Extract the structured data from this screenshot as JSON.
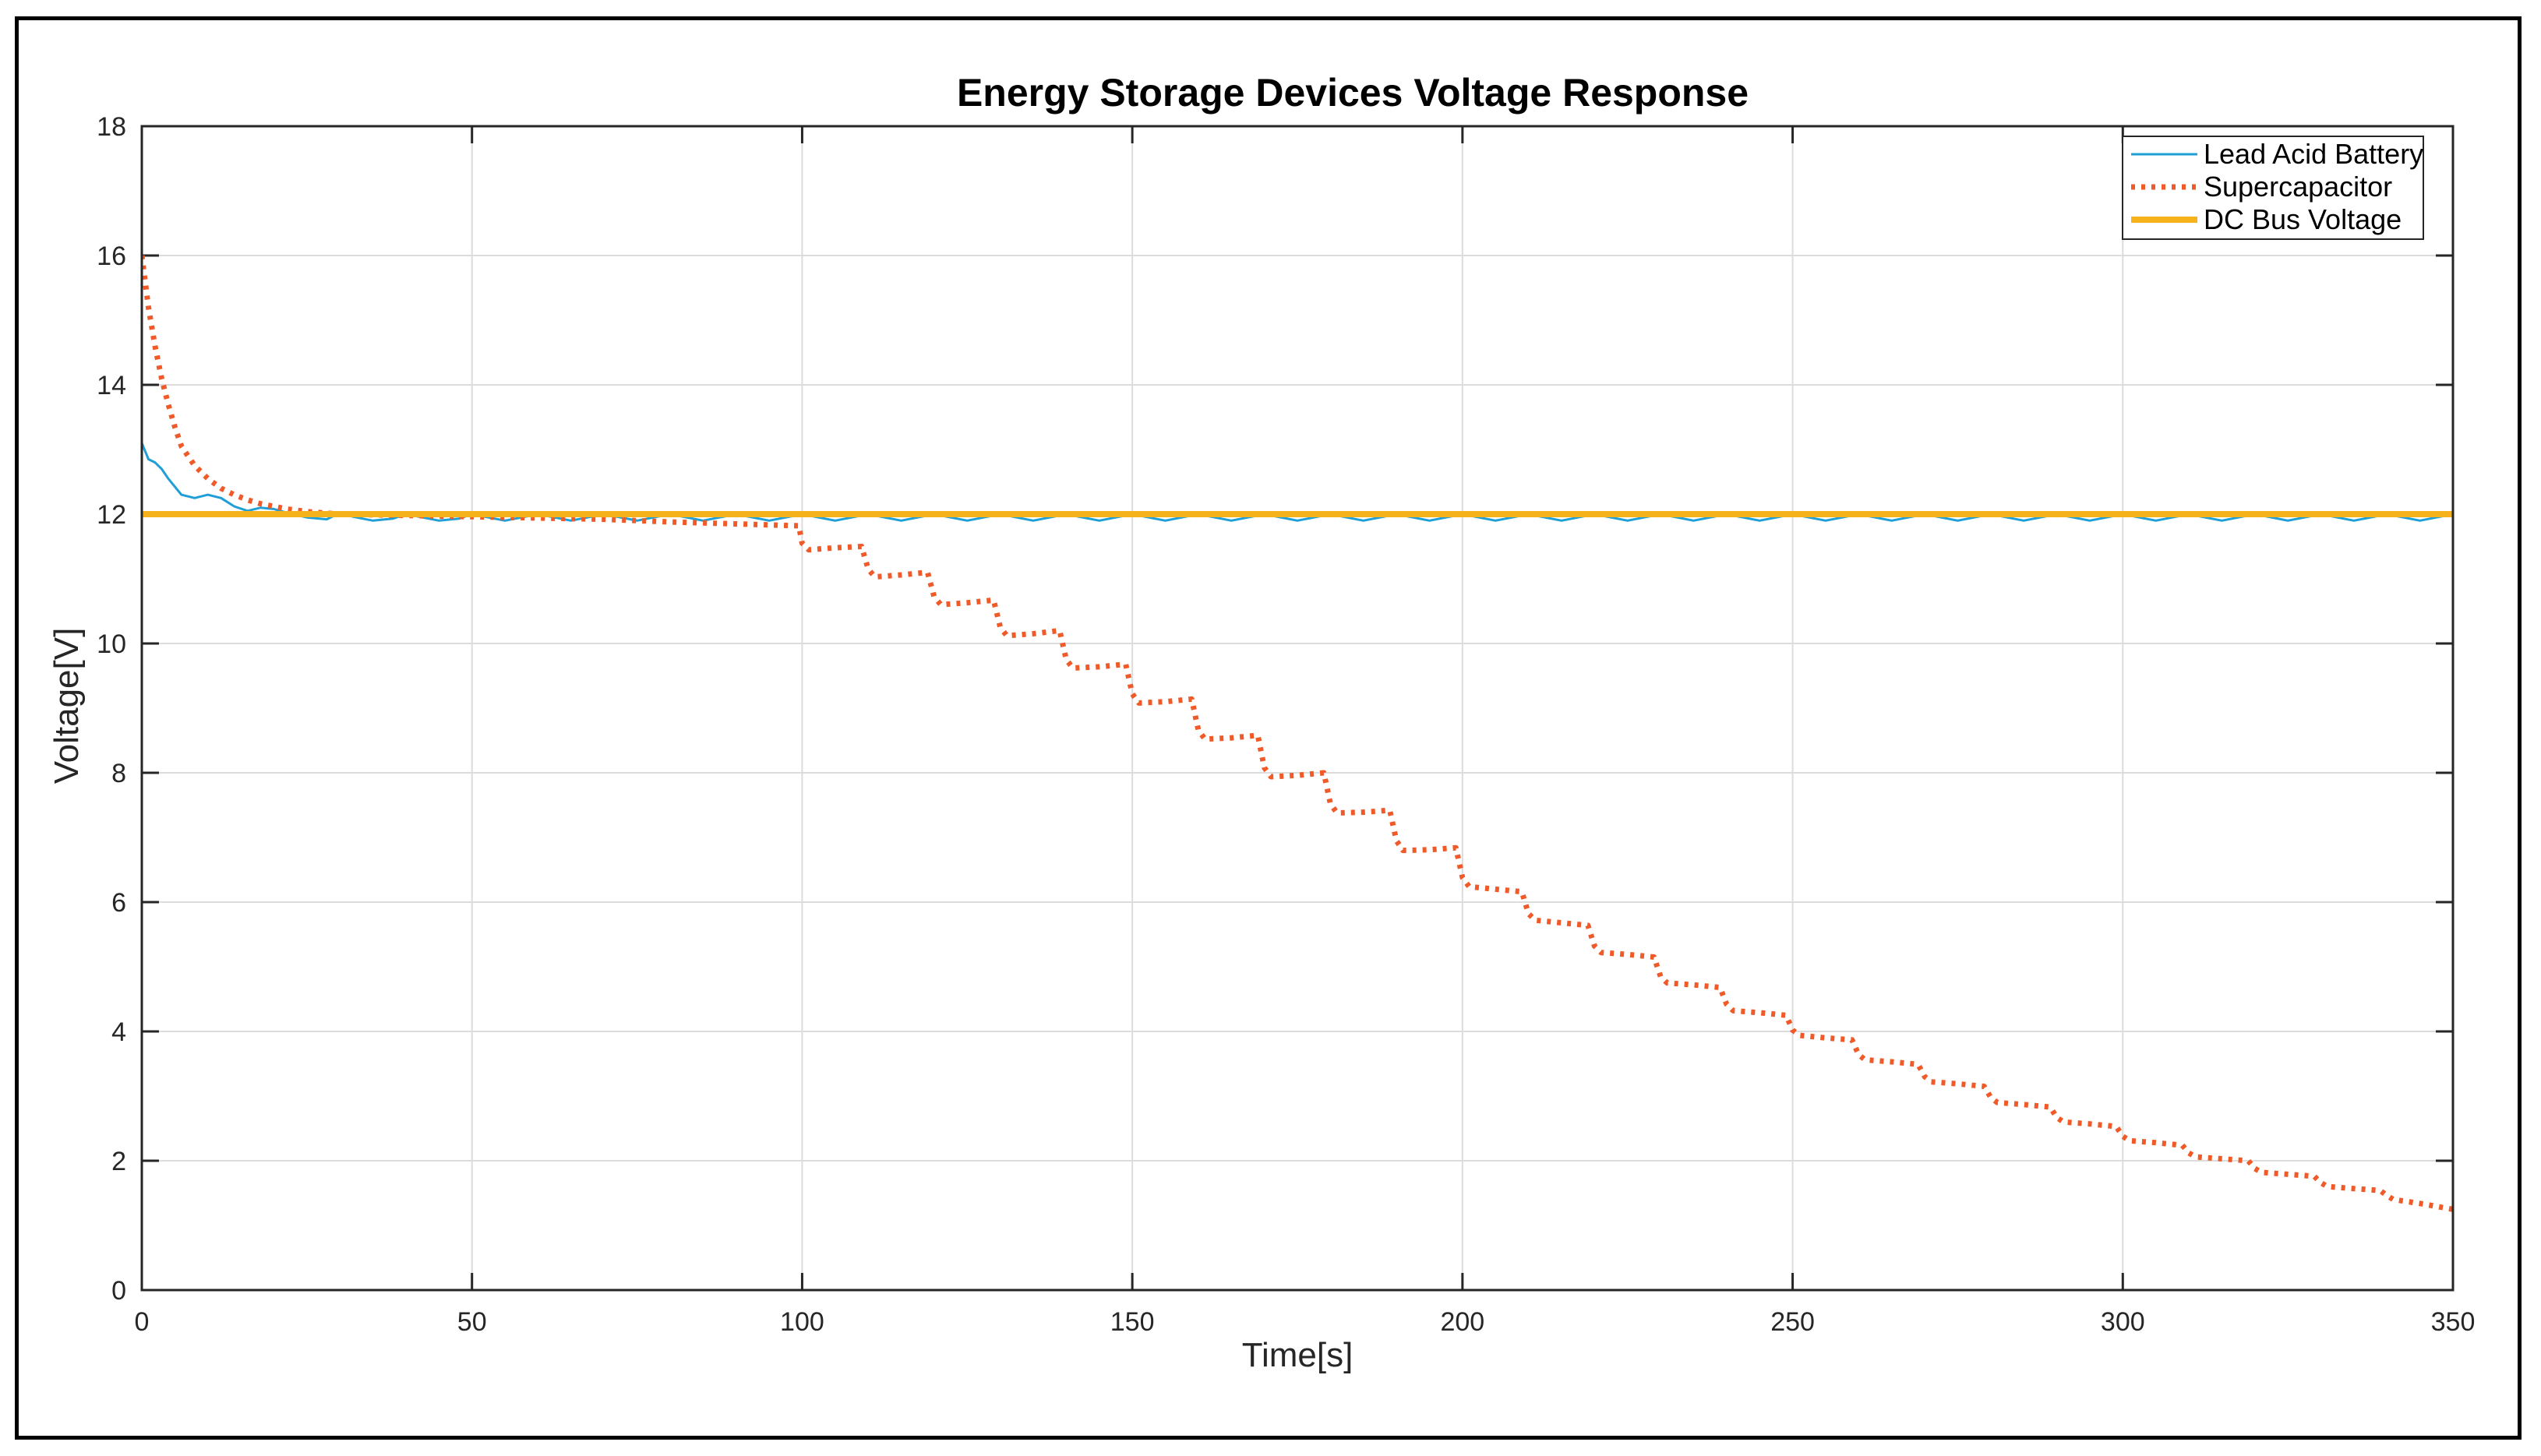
{
  "chart_data": {
    "type": "line",
    "title": "Energy Storage Devices Voltage Response",
    "xlabel": "Time[s]",
    "ylabel": "Voltage[V]",
    "xlim": [
      0,
      350
    ],
    "ylim": [
      0,
      18
    ],
    "xticks": [
      0,
      50,
      100,
      150,
      200,
      250,
      300,
      350
    ],
    "yticks": [
      0,
      2,
      4,
      6,
      8,
      10,
      12,
      14,
      16,
      18
    ],
    "grid": true,
    "legend_position": "top-right",
    "series": [
      {
        "name": "Lead Acid Battery",
        "color": "#1f9fd6",
        "style": "solid",
        "x": [
          0,
          1,
          2,
          3,
          4,
          6,
          8,
          10,
          12,
          14,
          16,
          18,
          20,
          22,
          25,
          28,
          30,
          32,
          35,
          38,
          40,
          42,
          45,
          48,
          50,
          55,
          60,
          65,
          70,
          75,
          80,
          85,
          90,
          95,
          100,
          105,
          110,
          115,
          120,
          125,
          130,
          135,
          140,
          145,
          150,
          155,
          160,
          165,
          170,
          175,
          180,
          185,
          190,
          195,
          200,
          205,
          210,
          215,
          220,
          225,
          230,
          235,
          240,
          245,
          250,
          255,
          260,
          265,
          270,
          275,
          280,
          285,
          290,
          295,
          300,
          305,
          310,
          315,
          320,
          325,
          330,
          335,
          340,
          345,
          350
        ],
        "y": [
          13.1,
          12.85,
          12.8,
          12.7,
          12.55,
          12.3,
          12.25,
          12.3,
          12.25,
          12.12,
          12.05,
          12.1,
          12.08,
          12.02,
          11.95,
          11.92,
          12.02,
          11.96,
          11.9,
          11.93,
          12.0,
          11.96,
          11.9,
          11.93,
          12.0,
          11.9,
          12.0,
          11.9,
          12.0,
          11.9,
          12.0,
          11.9,
          12.0,
          11.9,
          12.0,
          11.9,
          12.0,
          11.9,
          12.0,
          11.9,
          12.0,
          11.9,
          12.0,
          11.9,
          12.0,
          11.9,
          12.0,
          11.9,
          12.0,
          11.9,
          12.0,
          11.9,
          12.0,
          11.9,
          12.0,
          11.9,
          12.0,
          11.9,
          12.0,
          11.9,
          12.0,
          11.9,
          12.0,
          11.9,
          12.0,
          11.9,
          12.0,
          11.9,
          12.0,
          11.9,
          12.0,
          11.9,
          12.0,
          11.9,
          12.0,
          11.9,
          12.0,
          11.9,
          12.0,
          11.9,
          12.0,
          11.9,
          12.0,
          11.9,
          12.0
        ]
      },
      {
        "name": "Supercapacitor",
        "color": "#ef5a28",
        "style": "dotted",
        "x": [
          0,
          1,
          2,
          3,
          4,
          5,
          6,
          8,
          10,
          12,
          14,
          16,
          18,
          20,
          22,
          25,
          30,
          40,
          50,
          60,
          70,
          80,
          90,
          99.5,
          100,
          101,
          105,
          109,
          110,
          111,
          115,
          119,
          120,
          121,
          125,
          129,
          130,
          131,
          135,
          139,
          140,
          141,
          145,
          149,
          150,
          151,
          155,
          159,
          160,
          161,
          165,
          169,
          170,
          171,
          175,
          179,
          180,
          181,
          185,
          189,
          190,
          191,
          195,
          199,
          200,
          201,
          205,
          209,
          210,
          211,
          215,
          219,
          220,
          221,
          225,
          229,
          230,
          231,
          235,
          239,
          240,
          241,
          245,
          249,
          250,
          251,
          255,
          259,
          260,
          261,
          265,
          269,
          270,
          271,
          275,
          279,
          280,
          281,
          285,
          289,
          290,
          291,
          295,
          299,
          300,
          301,
          305,
          309,
          310,
          311,
          315,
          319,
          320,
          321,
          325,
          329,
          330,
          331,
          335,
          339,
          340,
          341,
          345,
          350
        ],
        "y": [
          16.0,
          15.2,
          14.6,
          14.1,
          13.7,
          13.35,
          13.05,
          12.75,
          12.55,
          12.4,
          12.3,
          12.22,
          12.16,
          12.12,
          12.08,
          12.04,
          12.0,
          11.98,
          11.96,
          11.94,
          11.92,
          11.88,
          11.85,
          11.82,
          11.55,
          11.45,
          11.48,
          11.5,
          11.15,
          11.03,
          11.06,
          11.1,
          10.72,
          10.6,
          10.63,
          10.67,
          10.25,
          10.12,
          10.15,
          10.2,
          9.75,
          9.62,
          9.64,
          9.68,
          9.22,
          9.08,
          9.1,
          9.14,
          8.66,
          8.52,
          8.54,
          8.58,
          8.08,
          7.94,
          7.96,
          8.0,
          7.52,
          7.38,
          7.39,
          7.42,
          6.95,
          6.8,
          6.81,
          6.84,
          6.38,
          6.24,
          6.2,
          6.16,
          5.82,
          5.72,
          5.68,
          5.64,
          5.32,
          5.22,
          5.19,
          5.15,
          4.85,
          4.75,
          4.72,
          4.68,
          4.42,
          4.32,
          4.29,
          4.25,
          4.02,
          3.94,
          3.9,
          3.87,
          3.64,
          3.56,
          3.53,
          3.49,
          3.3,
          3.22,
          3.19,
          3.15,
          2.98,
          2.9,
          2.87,
          2.83,
          2.67,
          2.6,
          2.57,
          2.53,
          2.38,
          2.31,
          2.28,
          2.24,
          2.12,
          2.06,
          2.03,
          2.0,
          1.88,
          1.82,
          1.79,
          1.76,
          1.66,
          1.6,
          1.57,
          1.54,
          1.46,
          1.4,
          1.34,
          1.25
        ]
      },
      {
        "name": "DC Bus Voltage",
        "color": "#f5b21a",
        "style": "thick",
        "x": [
          0,
          350
        ],
        "y": [
          12,
          12
        ]
      }
    ]
  }
}
